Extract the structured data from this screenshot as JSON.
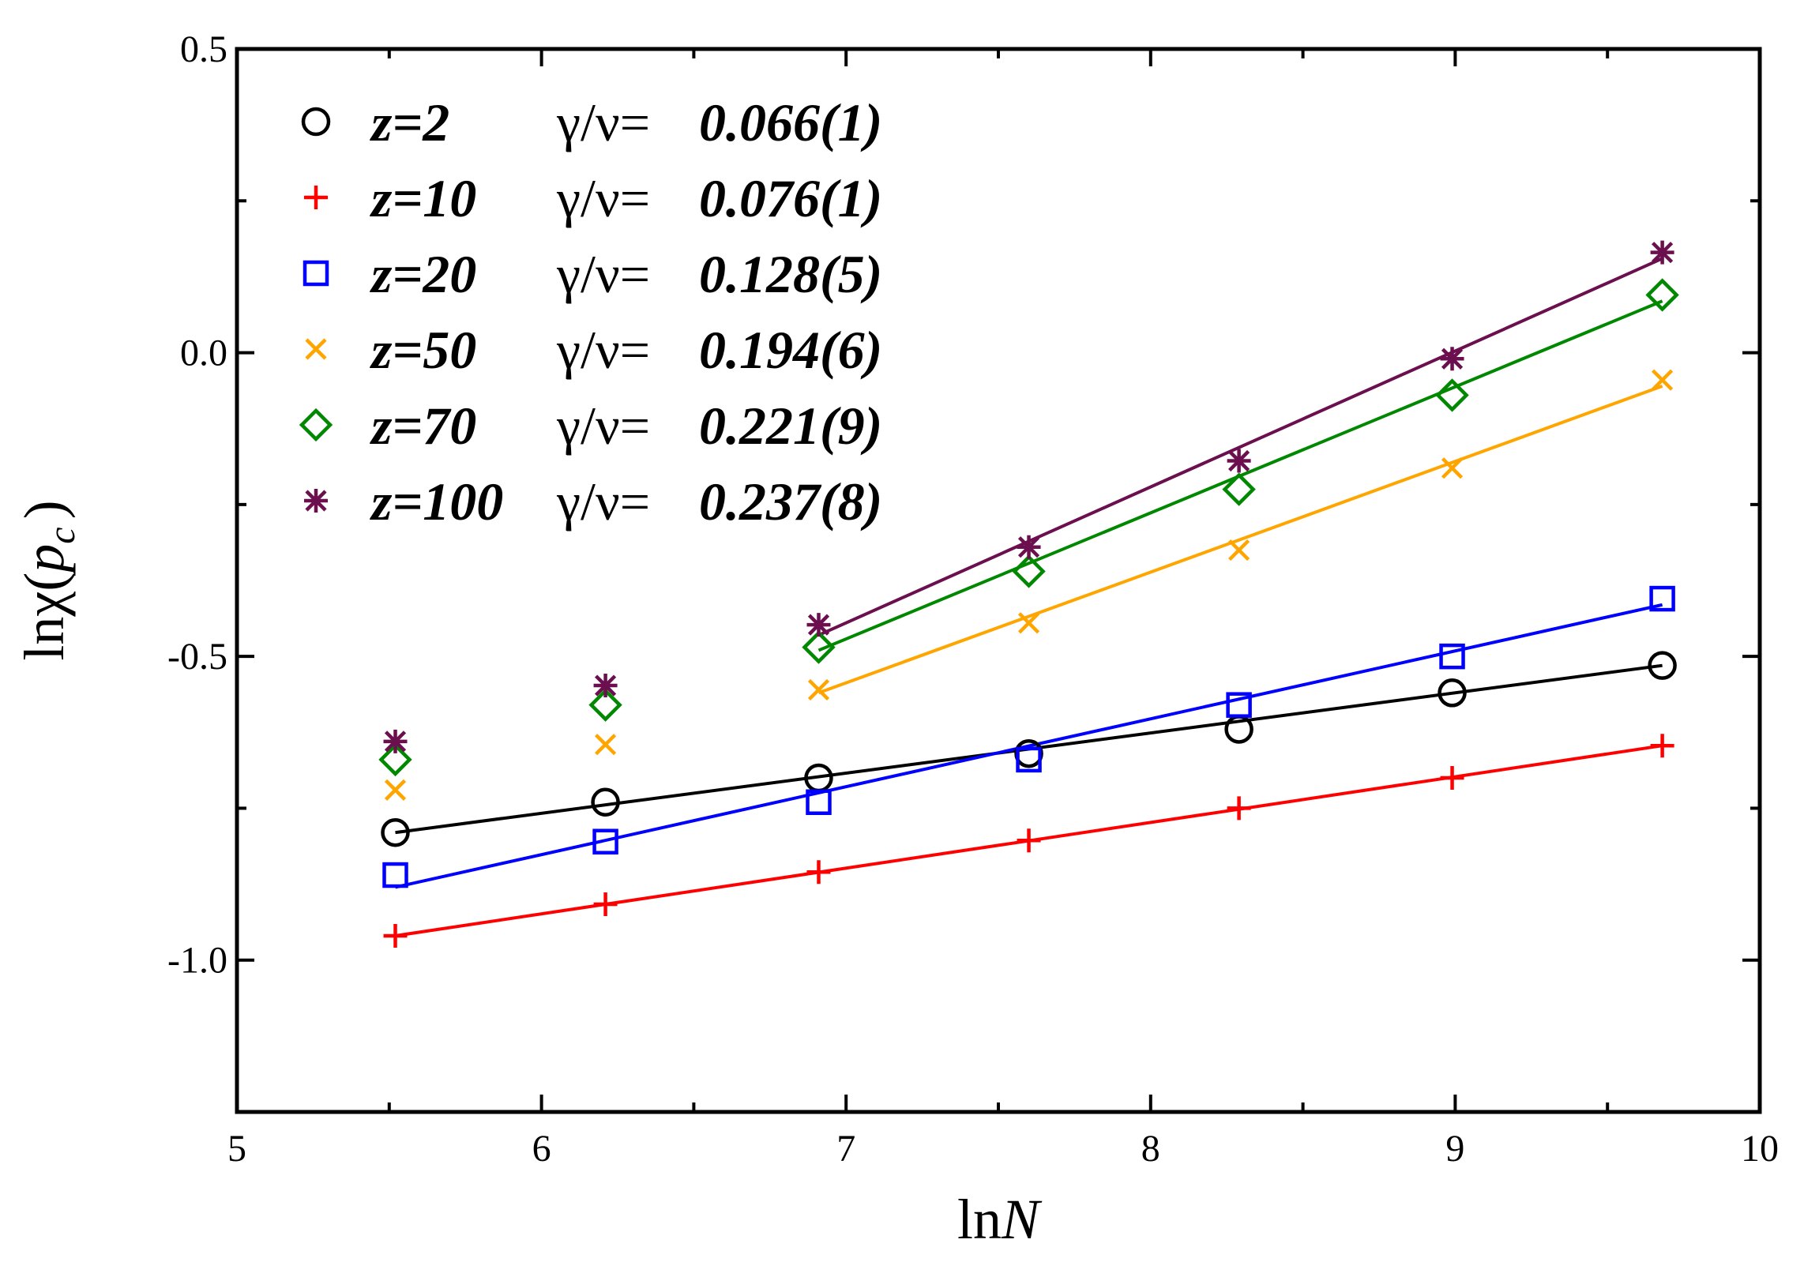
{
  "chart_data": {
    "type": "scatter",
    "title": "",
    "xlabel_prefix": "ln",
    "xlabel_var": "N",
    "ylabel_prefix": "lnχ(",
    "ylabel_var": "p",
    "ylabel_sub": "c",
    "ylabel_suffix": ")",
    "xlim": [
      5,
      10
    ],
    "ylim": [
      -1.25,
      0.5
    ],
    "xticks": [
      5,
      6,
      7,
      8,
      9,
      10
    ],
    "xtick_labels": [
      "5",
      "6",
      "7",
      "8",
      "9",
      "10"
    ],
    "yticks": [
      0.5,
      0.0,
      -0.5,
      -1.0
    ],
    "ytick_labels": [
      "0.5",
      "0.0",
      "-0.5",
      "-1.0"
    ],
    "legend_position": "top-left",
    "gamma_nu_label": "γ/ν=",
    "x": [
      5.52,
      6.21,
      6.91,
      7.6,
      8.29,
      8.99,
      9.68
    ],
    "series": [
      {
        "name": "z=2",
        "gamma_nu": "0.066(1)",
        "marker": "circle",
        "color": "#000000",
        "points": [
          [
            5.52,
            -0.79
          ],
          [
            6.21,
            -0.74
          ],
          [
            6.91,
            -0.7
          ],
          [
            7.6,
            -0.66
          ],
          [
            8.29,
            -0.62
          ],
          [
            8.99,
            -0.56
          ],
          [
            9.68,
            -0.515
          ]
        ],
        "fit": [
          [
            5.52,
            -0.79
          ],
          [
            9.68,
            -0.515
          ]
        ]
      },
      {
        "name": "z=10",
        "gamma_nu": "0.076(1)",
        "marker": "plus",
        "color": "#ff0000",
        "points": [
          [
            5.52,
            -0.96
          ],
          [
            6.21,
            -0.908
          ],
          [
            6.91,
            -0.855
          ],
          [
            7.6,
            -0.803
          ],
          [
            8.29,
            -0.75
          ],
          [
            8.99,
            -0.7
          ],
          [
            9.68,
            -0.647
          ]
        ],
        "fit": [
          [
            5.52,
            -0.96
          ],
          [
            9.68,
            -0.647
          ]
        ]
      },
      {
        "name": "z=20",
        "gamma_nu": "0.128(5)",
        "marker": "square",
        "color": "#0000ff",
        "points": [
          [
            5.52,
            -0.86
          ],
          [
            6.21,
            -0.805
          ],
          [
            6.91,
            -0.74
          ],
          [
            7.6,
            -0.67
          ],
          [
            8.29,
            -0.58
          ],
          [
            8.99,
            -0.5
          ],
          [
            9.68,
            -0.405
          ]
        ],
        "fit": [
          [
            5.52,
            -0.88
          ],
          [
            9.68,
            -0.415
          ]
        ]
      },
      {
        "name": "z=50",
        "gamma_nu": "0.194(6)",
        "marker": "cross",
        "color": "#ffa500",
        "points": [
          [
            5.52,
            -0.72
          ],
          [
            6.21,
            -0.645
          ],
          [
            6.91,
            -0.555
          ],
          [
            7.6,
            -0.445
          ],
          [
            8.29,
            -0.325
          ],
          [
            8.99,
            -0.19
          ],
          [
            9.68,
            -0.045
          ]
        ],
        "fit": [
          [
            6.91,
            -0.56
          ],
          [
            9.68,
            -0.055
          ]
        ]
      },
      {
        "name": "z=70",
        "gamma_nu": "0.221(9)",
        "marker": "diamond",
        "color": "#008800",
        "points": [
          [
            5.52,
            -0.67
          ],
          [
            6.21,
            -0.58
          ],
          [
            6.91,
            -0.485
          ],
          [
            7.6,
            -0.36
          ],
          [
            8.29,
            -0.225
          ],
          [
            8.99,
            -0.07
          ],
          [
            9.68,
            0.095
          ]
        ],
        "fit": [
          [
            6.91,
            -0.49
          ],
          [
            9.68,
            0.085
          ]
        ]
      },
      {
        "name": "z=100",
        "gamma_nu": "0.237(8)",
        "marker": "star",
        "color": "#6b0f4f",
        "points": [
          [
            5.52,
            -0.64
          ],
          [
            6.21,
            -0.548
          ],
          [
            6.91,
            -0.448
          ],
          [
            7.6,
            -0.32
          ],
          [
            8.29,
            -0.178
          ],
          [
            8.99,
            -0.01
          ],
          [
            9.68,
            0.165
          ]
        ],
        "fit": [
          [
            6.91,
            -0.465
          ],
          [
            9.68,
            0.155
          ]
        ]
      }
    ]
  }
}
